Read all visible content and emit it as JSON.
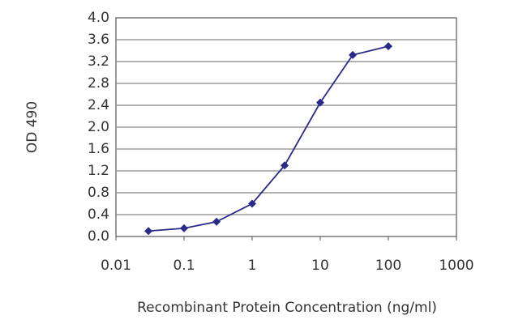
{
  "chart_data": {
    "type": "line",
    "x_label": "Recombinant Protein Concentration (ng/ml)",
    "y_label": "OD 490",
    "x": [
      0.03,
      0.1,
      0.3,
      1,
      3,
      10,
      30,
      100
    ],
    "series": [
      {
        "color": "#2a2a8a",
        "values": [
          0.1,
          0.15,
          0.27,
          0.6,
          1.3,
          2.45,
          3.32,
          3.48
        ]
      }
    ],
    "xscale": "log",
    "xlim": [
      0.01,
      1000
    ],
    "xticks": [
      0.01,
      0.1,
      1,
      10,
      100,
      1000
    ],
    "ylim": [
      0,
      4
    ],
    "yticks": [
      {
        "value": 0,
        "label": "0.0"
      },
      0.4,
      0.8,
      1.2,
      1.6,
      {
        "value": 2,
        "label": "2.0"
      },
      2.4,
      2.8,
      3.2,
      3.6,
      {
        "value": 4,
        "label": "4.0"
      }
    ],
    "grid": true
  }
}
